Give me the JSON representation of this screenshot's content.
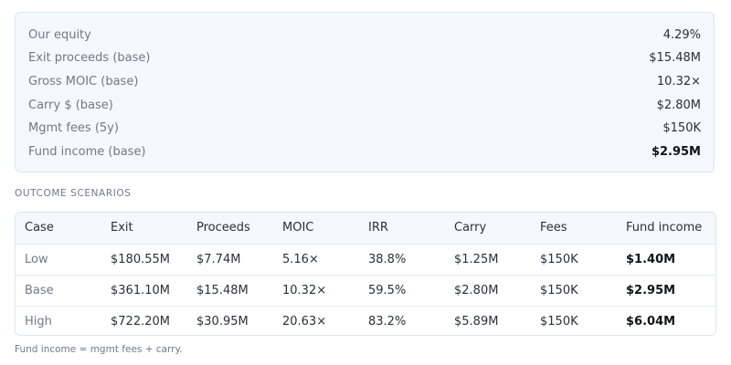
{
  "summary": [
    {
      "label": "Our equity",
      "value": "4.29%"
    },
    {
      "label": "Exit proceeds (base)",
      "value": "$15.48M"
    },
    {
      "label": "Gross MOIC (base)",
      "value": "10.32×"
    },
    {
      "label": "Carry $ (base)",
      "value": "$2.80M"
    },
    {
      "label": "Mgmt fees (5y)",
      "value": "$150K"
    },
    {
      "label": "Fund income (base)",
      "value": "$2.95M"
    }
  ],
  "section_title": "OUTCOME SCENARIOS",
  "table": {
    "columns": [
      "Case",
      "Exit",
      "Proceeds",
      "MOIC",
      "IRR",
      "Carry",
      "Fees",
      "Fund income"
    ],
    "rows": [
      [
        "Low",
        "$180.55M",
        "$7.74M",
        "5.16×",
        "38.8%",
        "$1.25M",
        "$150K",
        "$1.40M"
      ],
      [
        "Base",
        "$361.10M",
        "$15.48M",
        "10.32×",
        "59.5%",
        "$2.80M",
        "$150K",
        "$2.95M"
      ],
      [
        "High",
        "$722.20M",
        "$30.95M",
        "20.63×",
        "83.2%",
        "$5.89M",
        "$150K",
        "$6.04M"
      ]
    ]
  },
  "footnote": "Fund income = mgmt fees + carry."
}
